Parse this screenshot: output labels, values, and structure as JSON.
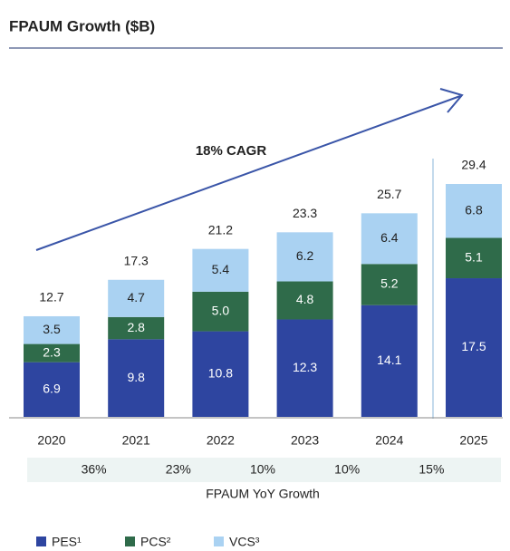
{
  "chart_data": {
    "type": "bar",
    "stacked": true,
    "title": "FPAUM Growth ($B)",
    "annotation": "18% CAGR",
    "categories": [
      "2020",
      "2021",
      "2022",
      "2023",
      "2024",
      "2025"
    ],
    "series": [
      {
        "name": "PES¹",
        "color": "#2e45a0",
        "values": [
          6.9,
          9.8,
          10.8,
          12.3,
          14.1,
          17.5
        ]
      },
      {
        "name": "PCS²",
        "color": "#2f6b4a",
        "values": [
          2.3,
          2.8,
          5,
          4.8,
          5.2,
          5.1
        ],
        "value_labels": [
          "2.3",
          "2.8",
          "5.0",
          "4.8",
          "5.2",
          "5.1"
        ]
      },
      {
        "name": "VCS³",
        "color": "#aad2f2",
        "values": [
          3.5,
          4.7,
          5.4,
          6.2,
          6.4,
          6.8
        ]
      }
    ],
    "totals": [
      12.7,
      17.3,
      21.2,
      23.3,
      25.7,
      29.4
    ],
    "growth": {
      "label": "FPAUM YoY Growth",
      "values": [
        36,
        23,
        10,
        10,
        15
      ],
      "value_labels": [
        "36%",
        "23%",
        "10%",
        "10%",
        "15%"
      ]
    }
  }
}
